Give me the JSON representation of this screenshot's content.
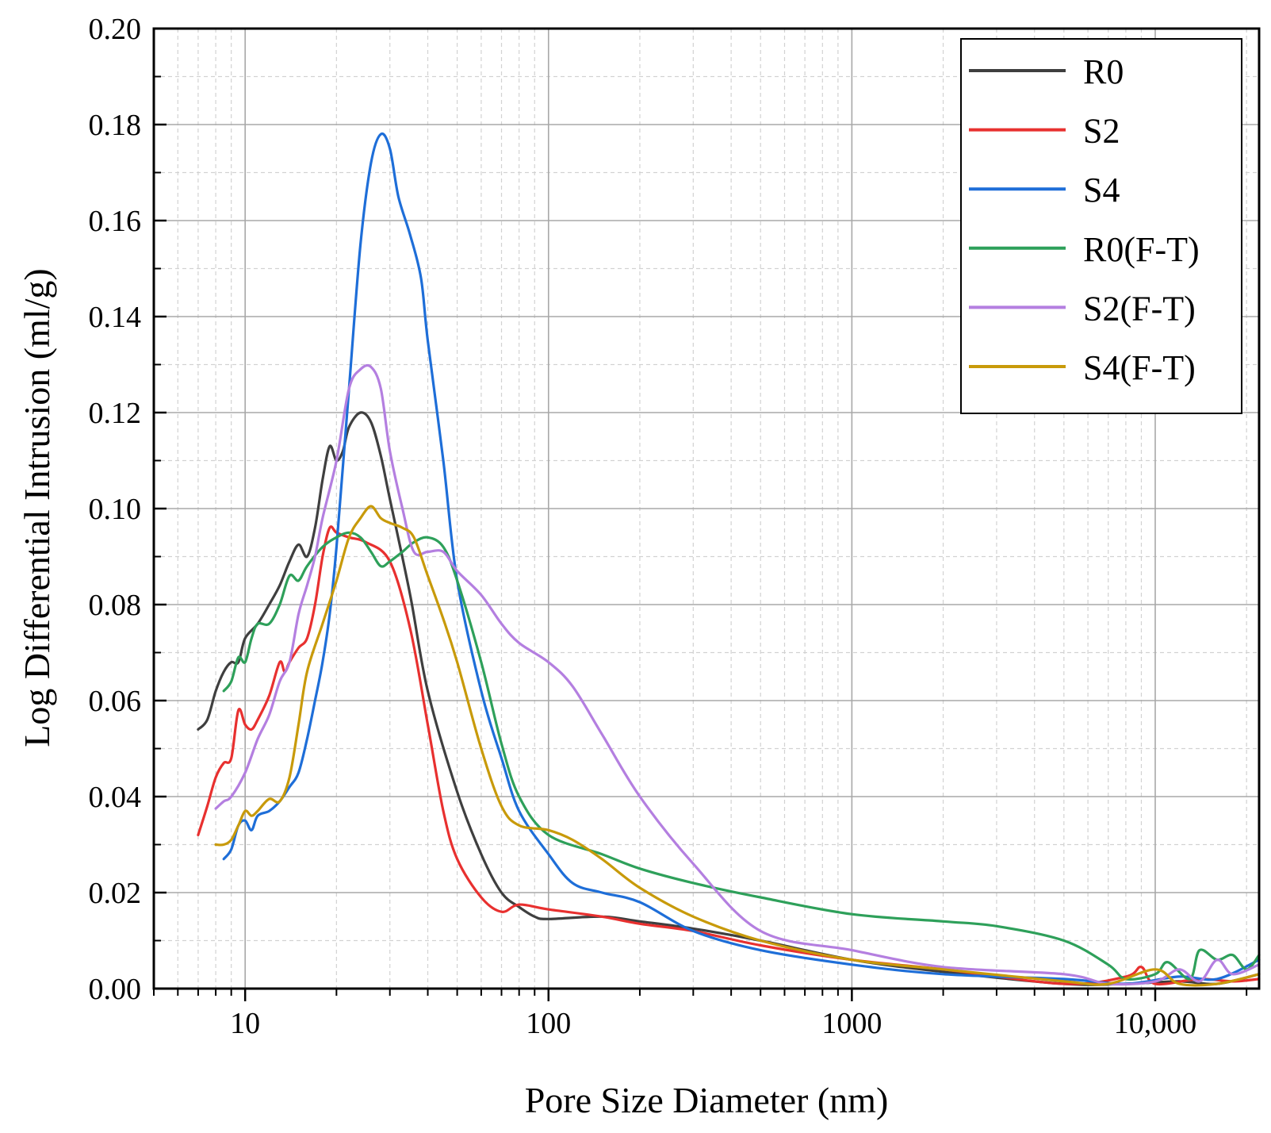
{
  "chart_data": {
    "type": "line",
    "title": "",
    "xlabel": "Pore Size Diameter (nm)",
    "ylabel": "Log Differential Intrusion (ml/g)",
    "xscale": "log",
    "xlim": [
      5,
      22000
    ],
    "ylim": [
      0,
      0.2
    ],
    "grid": true,
    "legend_position": "top-right",
    "x_ticks": [
      {
        "value": 10,
        "label": "10"
      },
      {
        "value": 100,
        "label": "100"
      },
      {
        "value": 1000,
        "label": "1000"
      },
      {
        "value": 10000,
        "label": "10,000"
      }
    ],
    "y_ticks": [
      {
        "value": 0.0,
        "label": "0.00"
      },
      {
        "value": 0.02,
        "label": "0.02"
      },
      {
        "value": 0.04,
        "label": "0.04"
      },
      {
        "value": 0.06,
        "label": "0.06"
      },
      {
        "value": 0.08,
        "label": "0.08"
      },
      {
        "value": 0.1,
        "label": "0.10"
      },
      {
        "value": 0.12,
        "label": "0.12"
      },
      {
        "value": 0.14,
        "label": "0.14"
      },
      {
        "value": 0.16,
        "label": "0.16"
      },
      {
        "value": 0.18,
        "label": "0.18"
      },
      {
        "value": 0.2,
        "label": "0.20"
      }
    ],
    "series": [
      {
        "name": "R0",
        "color": "#3f3f3f",
        "points": [
          [
            7.0,
            0.054
          ],
          [
            7.5,
            0.056
          ],
          [
            8,
            0.062
          ],
          [
            8.5,
            0.066
          ],
          [
            9,
            0.068
          ],
          [
            9.5,
            0.068
          ],
          [
            10,
            0.073
          ],
          [
            11,
            0.076
          ],
          [
            12,
            0.08
          ],
          [
            13,
            0.084
          ],
          [
            14,
            0.089
          ],
          [
            15,
            0.0925
          ],
          [
            16,
            0.09
          ],
          [
            17,
            0.096
          ],
          [
            18,
            0.106
          ],
          [
            19,
            0.113
          ],
          [
            20,
            0.11
          ],
          [
            21,
            0.112
          ],
          [
            22,
            0.117
          ],
          [
            24,
            0.12
          ],
          [
            26,
            0.118
          ],
          [
            28,
            0.111
          ],
          [
            30,
            0.102
          ],
          [
            35,
            0.082
          ],
          [
            40,
            0.062
          ],
          [
            50,
            0.041
          ],
          [
            60,
            0.028
          ],
          [
            70,
            0.02
          ],
          [
            80,
            0.017
          ],
          [
            90,
            0.015
          ],
          [
            100,
            0.0145
          ],
          [
            150,
            0.015
          ],
          [
            200,
            0.014
          ],
          [
            300,
            0.0125
          ],
          [
            500,
            0.01
          ],
          [
            1000,
            0.006
          ],
          [
            2000,
            0.0035
          ],
          [
            5000,
            0.001
          ],
          [
            8000,
            0.001
          ],
          [
            12000,
            0.0015
          ],
          [
            16000,
            0.001
          ],
          [
            22000,
            0.003
          ]
        ]
      },
      {
        "name": "S2",
        "color": "#e8302f",
        "points": [
          [
            7.0,
            0.032
          ],
          [
            7.5,
            0.038
          ],
          [
            8,
            0.044
          ],
          [
            8.5,
            0.047
          ],
          [
            9,
            0.048
          ],
          [
            9.5,
            0.058
          ],
          [
            10,
            0.055
          ],
          [
            10.5,
            0.054
          ],
          [
            11,
            0.056
          ],
          [
            12,
            0.061
          ],
          [
            13,
            0.068
          ],
          [
            13.5,
            0.066
          ],
          [
            14,
            0.068
          ],
          [
            15,
            0.071
          ],
          [
            16,
            0.073
          ],
          [
            17,
            0.08
          ],
          [
            18,
            0.09
          ],
          [
            19,
            0.096
          ],
          [
            20,
            0.095
          ],
          [
            22,
            0.094
          ],
          [
            25,
            0.093
          ],
          [
            30,
            0.089
          ],
          [
            35,
            0.075
          ],
          [
            40,
            0.055
          ],
          [
            45,
            0.037
          ],
          [
            50,
            0.027
          ],
          [
            60,
            0.019
          ],
          [
            70,
            0.016
          ],
          [
            80,
            0.0175
          ],
          [
            100,
            0.0165
          ],
          [
            150,
            0.015
          ],
          [
            200,
            0.0135
          ],
          [
            300,
            0.012
          ],
          [
            500,
            0.009
          ],
          [
            1000,
            0.006
          ],
          [
            2000,
            0.004
          ],
          [
            5000,
            0.001
          ],
          [
            8000,
            0.0025
          ],
          [
            9000,
            0.0045
          ],
          [
            10000,
            0.001
          ],
          [
            14000,
            0.002
          ],
          [
            18000,
            0.0015
          ],
          [
            22000,
            0.002
          ]
        ]
      },
      {
        "name": "S4",
        "color": "#1e6ed8",
        "points": [
          [
            8.5,
            0.027
          ],
          [
            9,
            0.029
          ],
          [
            9.5,
            0.034
          ],
          [
            10,
            0.035
          ],
          [
            10.5,
            0.033
          ],
          [
            11,
            0.036
          ],
          [
            12,
            0.037
          ],
          [
            13,
            0.039
          ],
          [
            14,
            0.042
          ],
          [
            15,
            0.045
          ],
          [
            16,
            0.052
          ],
          [
            17,
            0.06
          ],
          [
            18,
            0.068
          ],
          [
            19,
            0.078
          ],
          [
            20,
            0.092
          ],
          [
            22,
            0.125
          ],
          [
            24,
            0.155
          ],
          [
            26,
            0.172
          ],
          [
            28,
            0.178
          ],
          [
            30,
            0.175
          ],
          [
            32,
            0.165
          ],
          [
            35,
            0.157
          ],
          [
            38,
            0.148
          ],
          [
            40,
            0.135
          ],
          [
            45,
            0.11
          ],
          [
            50,
            0.085
          ],
          [
            60,
            0.062
          ],
          [
            70,
            0.048
          ],
          [
            80,
            0.037
          ],
          [
            100,
            0.028
          ],
          [
            120,
            0.022
          ],
          [
            150,
            0.02
          ],
          [
            200,
            0.018
          ],
          [
            300,
            0.012
          ],
          [
            500,
            0.008
          ],
          [
            1000,
            0.005
          ],
          [
            2000,
            0.003
          ],
          [
            5000,
            0.002
          ],
          [
            8000,
            0.001
          ],
          [
            12000,
            0.0025
          ],
          [
            16000,
            0.002
          ],
          [
            22000,
            0.006
          ]
        ]
      },
      {
        "name": "R0(F-T)",
        "color": "#2ea05a",
        "points": [
          [
            8.5,
            0.062
          ],
          [
            9,
            0.064
          ],
          [
            9.5,
            0.069
          ],
          [
            10,
            0.068
          ],
          [
            10.5,
            0.073
          ],
          [
            11,
            0.076
          ],
          [
            12,
            0.076
          ],
          [
            13,
            0.08
          ],
          [
            14,
            0.086
          ],
          [
            15,
            0.085
          ],
          [
            16,
            0.088
          ],
          [
            18,
            0.092
          ],
          [
            20,
            0.094
          ],
          [
            22,
            0.095
          ],
          [
            24,
            0.094
          ],
          [
            26,
            0.091
          ],
          [
            28,
            0.088
          ],
          [
            30,
            0.089
          ],
          [
            33,
            0.091
          ],
          [
            36,
            0.093
          ],
          [
            40,
            0.094
          ],
          [
            45,
            0.092
          ],
          [
            50,
            0.085
          ],
          [
            60,
            0.068
          ],
          [
            70,
            0.051
          ],
          [
            80,
            0.04
          ],
          [
            100,
            0.032
          ],
          [
            150,
            0.028
          ],
          [
            200,
            0.025
          ],
          [
            300,
            0.022
          ],
          [
            500,
            0.019
          ],
          [
            1000,
            0.0155
          ],
          [
            2000,
            0.014
          ],
          [
            3000,
            0.013
          ],
          [
            5000,
            0.01
          ],
          [
            7000,
            0.005
          ],
          [
            8000,
            0.002
          ],
          [
            10000,
            0.003
          ],
          [
            11000,
            0.0055
          ],
          [
            13000,
            0.002
          ],
          [
            14000,
            0.008
          ],
          [
            16000,
            0.006
          ],
          [
            18000,
            0.007
          ],
          [
            20000,
            0.004
          ],
          [
            22000,
            0.007
          ]
        ]
      },
      {
        "name": "S2(F-T)",
        "color": "#b47fe0",
        "points": [
          [
            8.0,
            0.0375
          ],
          [
            8.5,
            0.039
          ],
          [
            9,
            0.04
          ],
          [
            10,
            0.045
          ],
          [
            11,
            0.052
          ],
          [
            12,
            0.057
          ],
          [
            13,
            0.064
          ],
          [
            14,
            0.068
          ],
          [
            15,
            0.078
          ],
          [
            16,
            0.084
          ],
          [
            17,
            0.09
          ],
          [
            18,
            0.098
          ],
          [
            20,
            0.11
          ],
          [
            22,
            0.125
          ],
          [
            24,
            0.129
          ],
          [
            26,
            0.1295
          ],
          [
            28,
            0.125
          ],
          [
            30,
            0.112
          ],
          [
            33,
            0.1
          ],
          [
            36,
            0.091
          ],
          [
            40,
            0.091
          ],
          [
            45,
            0.091
          ],
          [
            50,
            0.087
          ],
          [
            60,
            0.082
          ],
          [
            70,
            0.076
          ],
          [
            80,
            0.072
          ],
          [
            100,
            0.068
          ],
          [
            120,
            0.063
          ],
          [
            150,
            0.053
          ],
          [
            200,
            0.04
          ],
          [
            300,
            0.026
          ],
          [
            500,
            0.012
          ],
          [
            1000,
            0.008
          ],
          [
            2000,
            0.0045
          ],
          [
            5000,
            0.003
          ],
          [
            7000,
            0.001
          ],
          [
            10000,
            0.0015
          ],
          [
            12000,
            0.004
          ],
          [
            14000,
            0.0015
          ],
          [
            16000,
            0.006
          ],
          [
            18000,
            0.003
          ],
          [
            22000,
            0.005
          ]
        ]
      },
      {
        "name": "S4(F-T)",
        "color": "#c89a0a",
        "points": [
          [
            8.0,
            0.03
          ],
          [
            8.5,
            0.03
          ],
          [
            9,
            0.031
          ],
          [
            9.5,
            0.034
          ],
          [
            10,
            0.037
          ],
          [
            10.5,
            0.036
          ],
          [
            11,
            0.037
          ],
          [
            12,
            0.0395
          ],
          [
            13,
            0.039
          ],
          [
            14,
            0.044
          ],
          [
            15,
            0.055
          ],
          [
            16,
            0.066
          ],
          [
            18,
            0.076
          ],
          [
            20,
            0.085
          ],
          [
            22,
            0.094
          ],
          [
            24,
            0.098
          ],
          [
            26,
            0.1005
          ],
          [
            28,
            0.098
          ],
          [
            30,
            0.097
          ],
          [
            33,
            0.096
          ],
          [
            36,
            0.094
          ],
          [
            40,
            0.086
          ],
          [
            45,
            0.077
          ],
          [
            50,
            0.068
          ],
          [
            60,
            0.05
          ],
          [
            70,
            0.038
          ],
          [
            80,
            0.034
          ],
          [
            100,
            0.033
          ],
          [
            120,
            0.031
          ],
          [
            150,
            0.027
          ],
          [
            200,
            0.021
          ],
          [
            300,
            0.015
          ],
          [
            500,
            0.01
          ],
          [
            1000,
            0.006
          ],
          [
            2000,
            0.004
          ],
          [
            5000,
            0.0015
          ],
          [
            7000,
            0.001
          ],
          [
            10000,
            0.004
          ],
          [
            12000,
            0.001
          ],
          [
            16000,
            0.001
          ],
          [
            22000,
            0.003
          ]
        ]
      }
    ]
  }
}
